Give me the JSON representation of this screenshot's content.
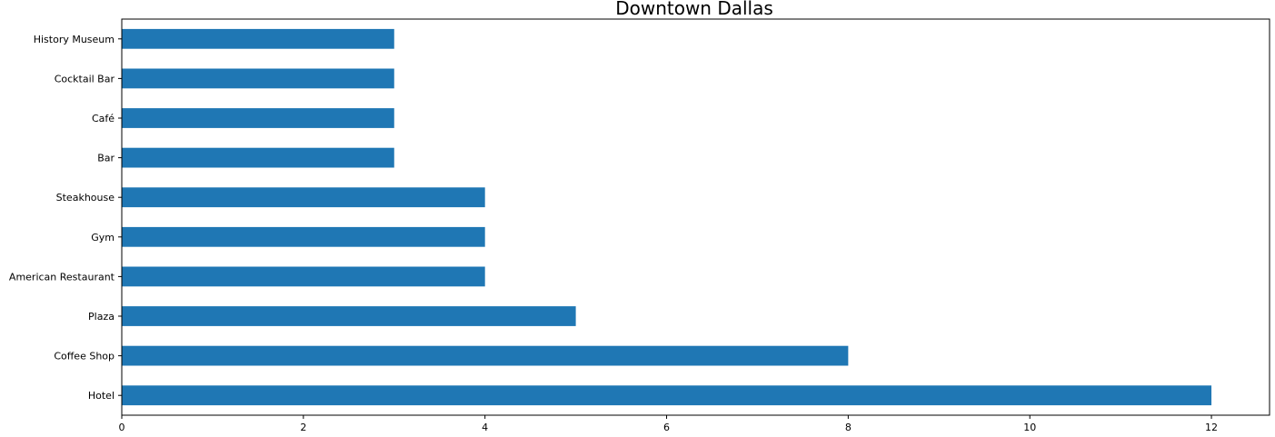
{
  "chart_data": {
    "type": "bar",
    "orientation": "horizontal",
    "title": "Downtown Dallas",
    "categories": [
      "Hotel",
      "Coffee Shop",
      "Plaza",
      "American Restaurant",
      "Gym",
      "Steakhouse",
      "Bar",
      "Café",
      "Cocktail Bar",
      "History Museum"
    ],
    "values": [
      12,
      8,
      5,
      4,
      4,
      4,
      3,
      3,
      3,
      3
    ],
    "xlim": [
      0,
      12.64
    ],
    "xticks": [
      0,
      2,
      4,
      6,
      8,
      10,
      12
    ],
    "xlabel": "",
    "ylabel": "",
    "grid": false,
    "bar_color": "#1f77b4"
  }
}
